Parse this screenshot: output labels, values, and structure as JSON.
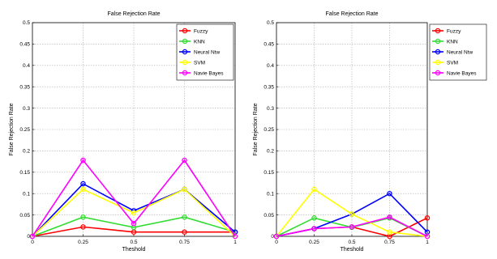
{
  "chart_data": [
    {
      "type": "line",
      "title": "False Rejection Rate",
      "xlabel": "Theshold",
      "ylabel": "False Rejection Rate",
      "x": [
        0,
        0.25,
        0.5,
        0.75,
        1
      ],
      "x_tick_labels": [
        "0",
        "0.25",
        "0.5",
        "0.75",
        "1"
      ],
      "ylim": [
        0,
        0.5
      ],
      "y_ticks": [
        0,
        0.05,
        0.1,
        0.15,
        0.2,
        0.25,
        0.3,
        0.35,
        0.4,
        0.45,
        0.5
      ],
      "y_tick_labels": [
        "0",
        "0.05",
        "0.1",
        "0.15",
        "0.2",
        "0.25",
        "0.3",
        "0.35",
        "0.4",
        "0.45",
        "0.5"
      ],
      "grid": true,
      "legend_position": "outside-right-top",
      "series": [
        {
          "name": "Fuzzy",
          "color": "#ff0000",
          "values": [
            0,
            0.022,
            0.01,
            0.01,
            0.01
          ]
        },
        {
          "name": "KNN",
          "color": "#33dd33",
          "values": [
            0,
            0.045,
            0.021,
            0.045,
            0.01
          ]
        },
        {
          "name": "Neural Ntw",
          "color": "#0000ff",
          "values": [
            0,
            0.123,
            0.06,
            0.11,
            0.01
          ]
        },
        {
          "name": "SVM",
          "color": "#ffff00",
          "values": [
            0,
            0.11,
            0.055,
            0.11,
            0
          ]
        },
        {
          "name": "Navie Bayes",
          "color": "#ff00ff",
          "values": [
            0,
            0.178,
            0.03,
            0.178,
            0
          ]
        }
      ]
    },
    {
      "type": "line",
      "title": "False Rejection Rate",
      "xlabel": "Theshold",
      "ylabel": "False Rejection Rate",
      "x": [
        0,
        0.25,
        0.5,
        0.75,
        1
      ],
      "x_tick_labels": [
        "0",
        "0.25",
        "0.5",
        "0.75",
        "1"
      ],
      "ylim": [
        0,
        0.5
      ],
      "y_ticks": [
        0,
        0.05,
        0.1,
        0.15,
        0.2,
        0.25,
        0.3,
        0.35,
        0.4,
        0.45,
        0.5
      ],
      "y_tick_labels": [
        "0",
        "0.05",
        "0.1",
        "0.15",
        "0.2",
        "0.25",
        "0.3",
        "0.35",
        "0.4",
        "0.45",
        "0.5"
      ],
      "grid": true,
      "legend_position": "outside-right-top",
      "series": [
        {
          "name": "Fuzzy",
          "color": "#ff0000",
          "values": [
            0,
            0.018,
            0.022,
            0,
            0.043
          ]
        },
        {
          "name": "KNN",
          "color": "#33dd33",
          "values": [
            0,
            0.043,
            0.021,
            0.043,
            0
          ]
        },
        {
          "name": "Neural Ntw",
          "color": "#0000ff",
          "values": [
            0,
            0.018,
            0.052,
            0.1,
            0.01
          ]
        },
        {
          "name": "SVM",
          "color": "#ffff00",
          "values": [
            0,
            0.11,
            0.052,
            0.01,
            0
          ]
        },
        {
          "name": "Navie Bayes",
          "color": "#ff00ff",
          "values": [
            0,
            0.018,
            0.022,
            0.045,
            0
          ]
        }
      ]
    }
  ]
}
